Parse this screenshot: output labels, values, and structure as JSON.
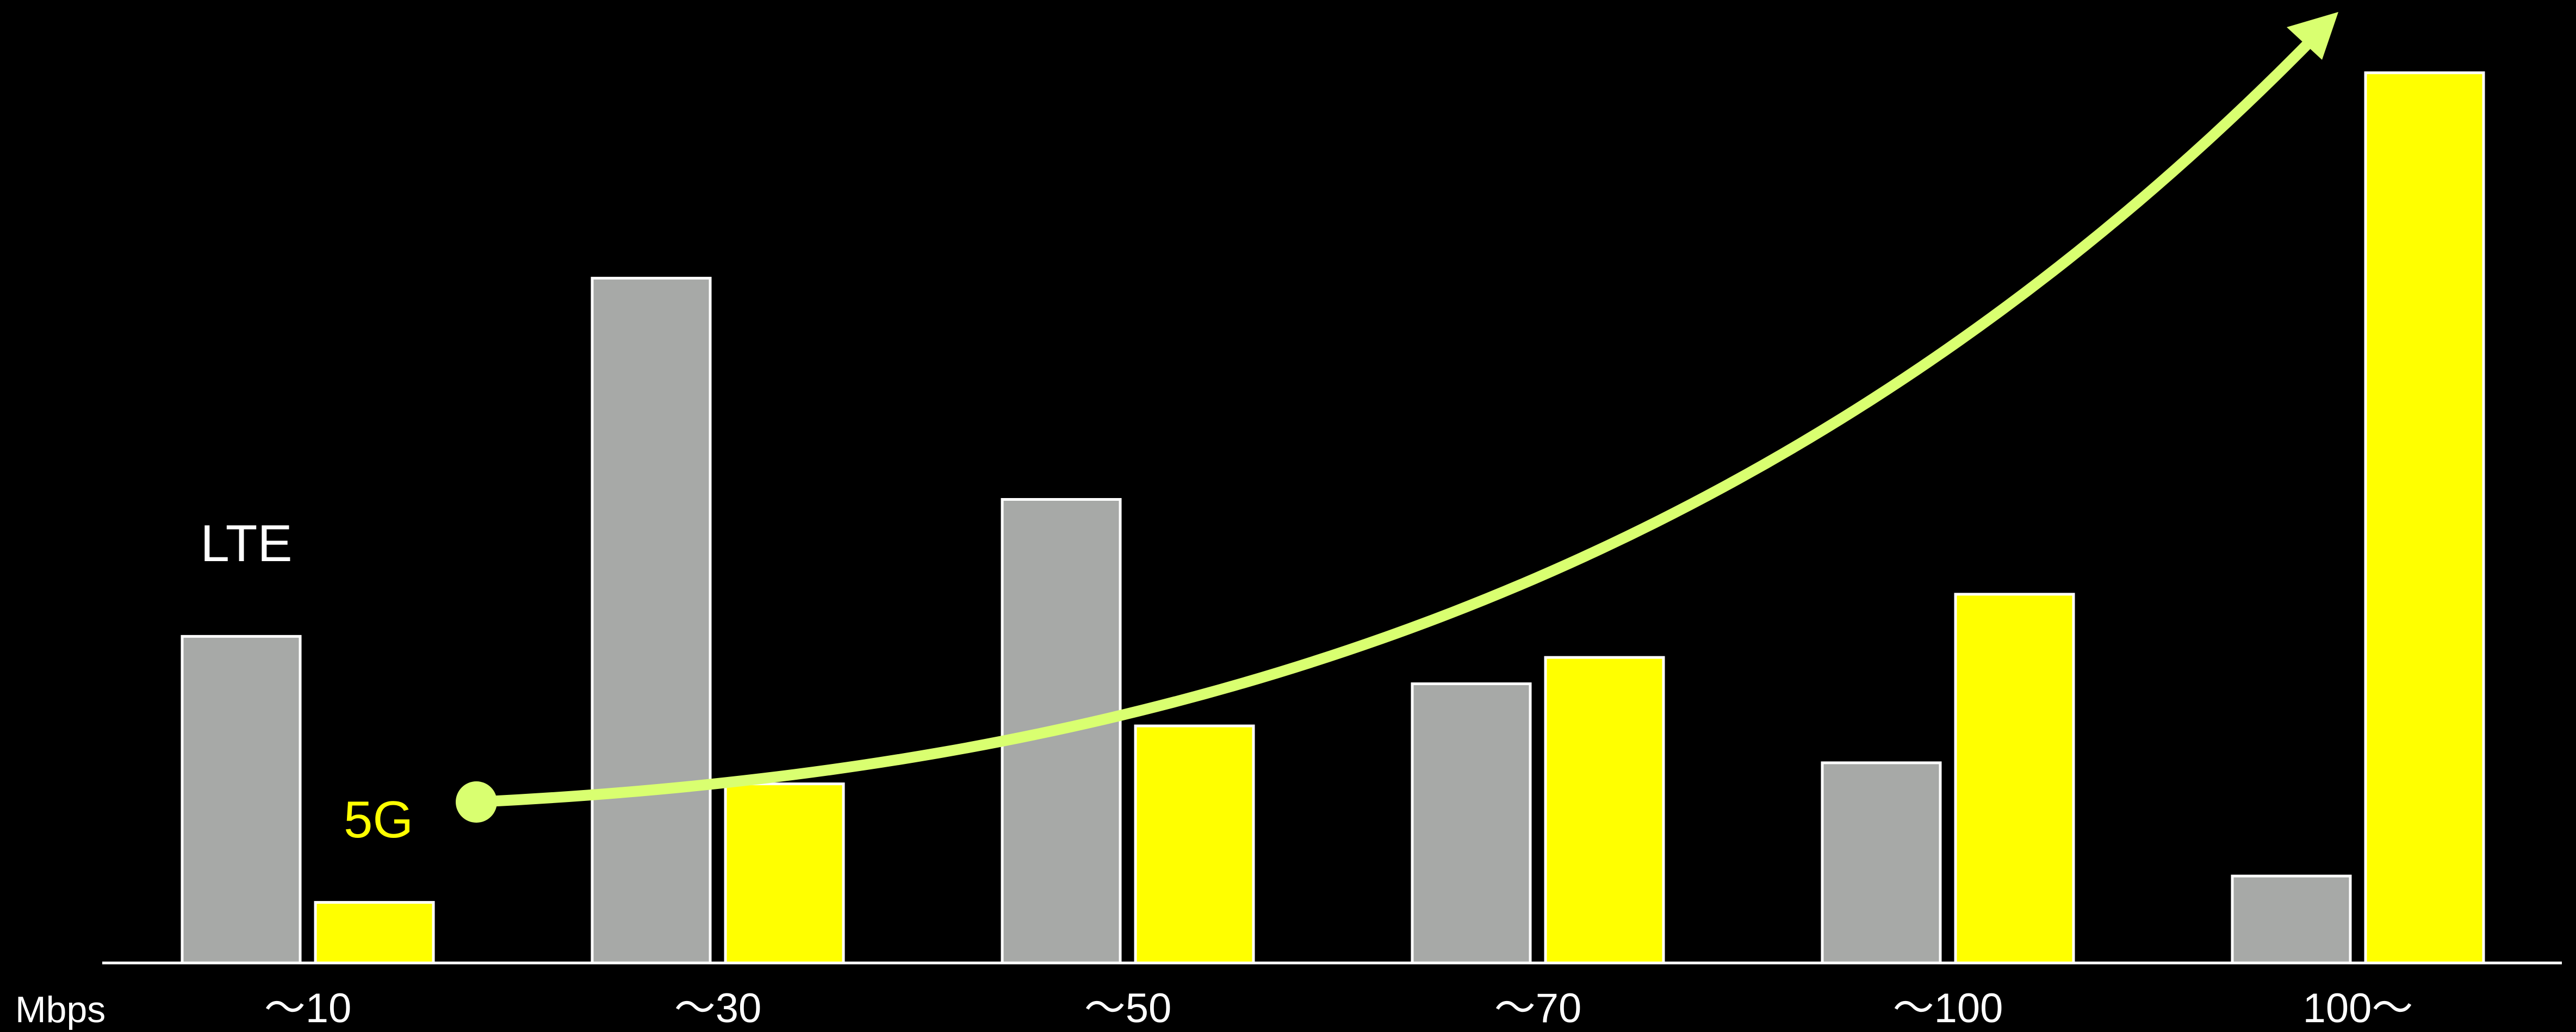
{
  "chart_data": {
    "type": "bar",
    "categories": [
      "～10",
      "～30",
      "～50",
      "～70",
      "～100",
      "100～"
    ],
    "series": [
      {
        "name": "LTE",
        "color": "#a7a9a7",
        "values": [
          62,
          130,
          88,
          53,
          38,
          16.5
        ]
      },
      {
        "name": "5G",
        "color": "#ffff00",
        "values": [
          11.5,
          34,
          45,
          58,
          70,
          169
        ]
      }
    ],
    "unit_label": "Mbps",
    "ylim": [
      0,
      176
    ],
    "grid": false,
    "legend": "inline labels",
    "annotations": [
      {
        "type": "arrow",
        "description": "rising trend of 5G",
        "color": "#d9ff70"
      }
    ]
  }
}
